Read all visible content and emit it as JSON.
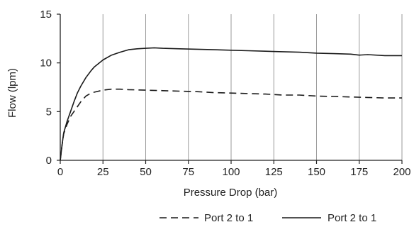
{
  "chart_data": {
    "type": "line",
    "title": "",
    "xlabel": "Pressure Drop (bar)",
    "ylabel": "Flow (lpm)",
    "xlim": [
      0,
      200
    ],
    "ylim": [
      0,
      15
    ],
    "xticks": [
      0,
      25,
      50,
      75,
      100,
      125,
      150,
      175,
      200
    ],
    "yticks": [
      0,
      5,
      10,
      15
    ],
    "grid": "vertical",
    "legend_position": "bottom",
    "series": [
      {
        "name": "Port 2 to 1",
        "style": "dashed",
        "color": "#1a1a1a",
        "x": [
          0,
          1,
          2,
          4,
          6,
          8,
          10,
          12,
          15,
          18,
          20,
          25,
          30,
          35,
          40,
          50,
          60,
          70,
          80,
          90,
          100,
          110,
          120,
          125,
          130,
          140,
          150,
          160,
          170,
          180,
          190,
          200
        ],
        "y": [
          0,
          1.5,
          2.7,
          3.7,
          4.5,
          5.0,
          5.5,
          6.0,
          6.6,
          6.9,
          7.0,
          7.2,
          7.3,
          7.3,
          7.25,
          7.2,
          7.15,
          7.1,
          7.05,
          6.95,
          6.9,
          6.85,
          6.8,
          6.75,
          6.7,
          6.7,
          6.6,
          6.55,
          6.5,
          6.45,
          6.4,
          6.4
        ]
      },
      {
        "name": "Port 2 to 1",
        "style": "solid",
        "color": "#1a1a1a",
        "x": [
          0,
          1,
          2,
          4,
          6,
          8,
          10,
          12,
          15,
          18,
          20,
          25,
          30,
          35,
          40,
          45,
          50,
          55,
          60,
          70,
          80,
          90,
          100,
          110,
          120,
          130,
          140,
          150,
          160,
          170,
          175,
          180,
          190,
          200
        ],
        "y": [
          0,
          1.5,
          2.8,
          4.0,
          5.0,
          6.0,
          6.9,
          7.6,
          8.5,
          9.2,
          9.6,
          10.3,
          10.8,
          11.1,
          11.35,
          11.45,
          11.5,
          11.55,
          11.5,
          11.45,
          11.4,
          11.35,
          11.3,
          11.25,
          11.2,
          11.15,
          11.1,
          11.0,
          10.95,
          10.9,
          10.8,
          10.85,
          10.75,
          10.75
        ]
      }
    ]
  }
}
